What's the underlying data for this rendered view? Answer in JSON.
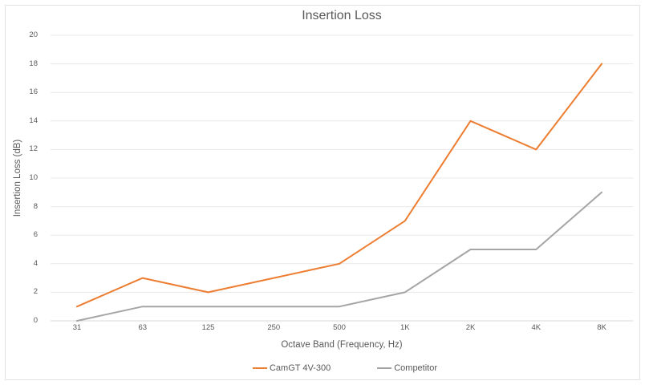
{
  "chart_data": {
    "type": "line",
    "title": "Insertion Loss",
    "xlabel": "Octave Band (Frequency, Hz)",
    "ylabel": "Insertion Loss (dB)",
    "categories": [
      "31",
      "63",
      "125",
      "250",
      "500",
      "1K",
      "2K",
      "4K",
      "8K"
    ],
    "series": [
      {
        "name": "CamGT 4V-300",
        "color": "#ED7D31",
        "values": [
          1,
          3,
          2,
          3,
          4,
          7,
          14,
          12,
          18
        ]
      },
      {
        "name": "Competitor",
        "color": "#A5A5A5",
        "values": [
          0,
          1,
          1,
          1,
          1,
          2,
          5,
          5,
          9
        ]
      }
    ],
    "ylim": [
      0,
      20
    ],
    "ytick_step": 2,
    "grid": true,
    "legend_position": "bottom"
  },
  "colors": {
    "background": "#FFFFFF",
    "gridline": "#E8E8E8",
    "axis_line": "#D9D9D9",
    "text": "#595959",
    "border": "#E2E2E2"
  }
}
